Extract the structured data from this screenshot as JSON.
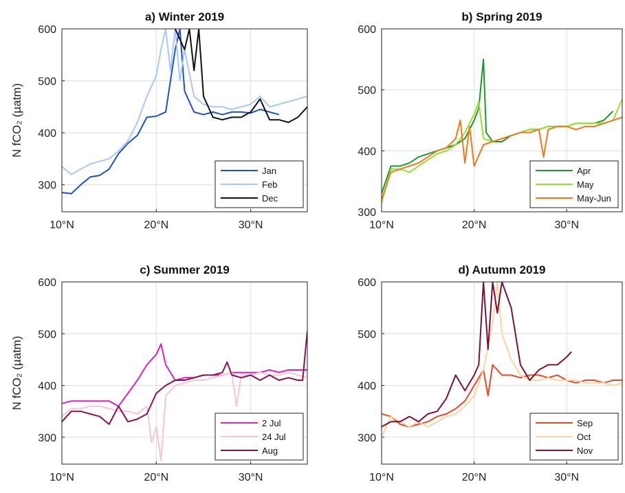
{
  "chart_data": [
    {
      "type": "line",
      "title": "a) Winter 2019",
      "ylabel": "N fCO₂ (µatm)",
      "xlim": [
        10,
        36
      ],
      "ylim": [
        248,
        600
      ],
      "xticks": [
        {
          "value": 10,
          "label": "10°N"
        },
        {
          "value": 20,
          "label": "20°N"
        },
        {
          "value": 30,
          "label": "30°N"
        }
      ],
      "yticks": [
        300,
        400,
        500,
        600
      ],
      "grid": true,
      "legend": "lower right",
      "series": [
        {
          "name": "Jan",
          "color": "#1f50c8",
          "x": [
            10,
            11,
            12,
            13,
            14,
            15,
            16,
            17,
            18,
            19,
            20,
            21,
            22,
            22.5,
            23,
            24,
            25,
            26,
            27,
            28,
            29,
            30,
            31,
            32,
            33
          ],
          "values": [
            285,
            283,
            300,
            315,
            318,
            330,
            360,
            380,
            395,
            430,
            432,
            440,
            560,
            600,
            480,
            440,
            435,
            440,
            435,
            440,
            440,
            438,
            445,
            440,
            435
          ]
        },
        {
          "name": "Feb",
          "color": "#a8c8f5",
          "x": [
            10,
            11,
            12,
            13,
            14,
            15,
            16,
            17,
            18,
            19,
            20,
            20.5,
            21,
            21.5,
            22,
            22.5,
            23,
            24,
            25,
            26,
            27,
            28,
            29,
            30,
            31,
            32,
            33,
            34,
            35,
            36
          ],
          "values": [
            335,
            320,
            330,
            340,
            345,
            350,
            365,
            385,
            420,
            470,
            510,
            560,
            600,
            520,
            600,
            500,
            560,
            470,
            455,
            450,
            450,
            445,
            450,
            455,
            470,
            450,
            455,
            460,
            465,
            470
          ]
        },
        {
          "name": "Dec",
          "color": "#111111",
          "x": [
            22,
            23,
            23.5,
            24,
            24.5,
            25,
            26,
            27,
            28,
            29,
            30,
            31,
            32,
            33,
            34,
            35,
            36
          ],
          "values": [
            600,
            560,
            600,
            520,
            600,
            470,
            430,
            425,
            430,
            430,
            440,
            465,
            425,
            425,
            420,
            430,
            450
          ]
        }
      ]
    },
    {
      "type": "line",
      "title": "b) Spring 2019",
      "xlim": [
        10,
        36
      ],
      "ylim": [
        300,
        600
      ],
      "xticks": [
        {
          "value": 10,
          "label": "10°N"
        },
        {
          "value": 20,
          "label": "20°N"
        },
        {
          "value": 30,
          "label": "30°N"
        }
      ],
      "yticks": [
        300,
        400,
        500,
        600
      ],
      "grid": true,
      "legend": "lower right",
      "series": [
        {
          "name": "Apr",
          "color": "#1a9a2a",
          "x": [
            10,
            11,
            12,
            13,
            14,
            15,
            16,
            17,
            18,
            19,
            20,
            20.5,
            21,
            21.3,
            22,
            23,
            24,
            25,
            26,
            27,
            28,
            29,
            30,
            31,
            32,
            33,
            34,
            35
          ],
          "values": [
            330,
            375,
            375,
            380,
            390,
            395,
            400,
            405,
            410,
            420,
            450,
            470,
            550,
            430,
            415,
            415,
            425,
            430,
            435,
            435,
            440,
            440,
            440,
            445,
            445,
            445,
            450,
            465
          ]
        },
        {
          "name": "May",
          "color": "#99dd33",
          "x": [
            10,
            11,
            12,
            13,
            14,
            15,
            16,
            17,
            18,
            19,
            20,
            20.5,
            21,
            22,
            23,
            24,
            25,
            26,
            27,
            28,
            29,
            30,
            31,
            32,
            33,
            34,
            35,
            36
          ],
          "values": [
            315,
            370,
            370,
            365,
            375,
            385,
            395,
            400,
            410,
            430,
            460,
            480,
            420,
            415,
            420,
            425,
            430,
            435,
            435,
            440,
            440,
            440,
            445,
            445,
            445,
            445,
            450,
            485
          ]
        },
        {
          "name": "May-Jun",
          "color": "#f07818",
          "x": [
            10,
            11,
            12,
            13,
            14,
            15,
            16,
            17,
            18,
            18.5,
            19,
            19.5,
            20,
            21,
            22,
            23,
            24,
            25,
            26,
            27,
            27.5,
            28,
            29,
            30,
            31,
            32,
            33,
            34,
            35,
            36
          ],
          "values": [
            320,
            365,
            370,
            375,
            380,
            390,
            400,
            405,
            420,
            450,
            380,
            440,
            375,
            410,
            415,
            420,
            425,
            430,
            430,
            435,
            390,
            435,
            440,
            440,
            435,
            440,
            440,
            445,
            450,
            455
          ]
        }
      ]
    },
    {
      "type": "line",
      "title": "c) Summer 2019",
      "ylabel": "N fCO₂ (µatm)",
      "xlim": [
        10,
        36
      ],
      "ylim": [
        248,
        600
      ],
      "xticks": [
        {
          "value": 10,
          "label": "10°N"
        },
        {
          "value": 20,
          "label": "20°N"
        },
        {
          "value": 30,
          "label": "30°N"
        }
      ],
      "yticks": [
        300,
        400,
        500,
        600
      ],
      "grid": true,
      "legend": "lower right",
      "series": [
        {
          "name": "2 Jul",
          "color": "#dd22bb",
          "x": [
            10,
            11,
            12,
            13,
            14,
            15,
            16,
            17,
            18,
            19,
            20,
            20.5,
            21,
            22,
            23,
            24,
            25,
            26,
            27,
            28,
            29,
            30,
            31,
            32,
            33,
            34,
            35,
            36
          ],
          "values": [
            365,
            370,
            370,
            370,
            370,
            370,
            360,
            385,
            410,
            440,
            460,
            480,
            440,
            410,
            415,
            415,
            420,
            420,
            420,
            425,
            425,
            425,
            425,
            430,
            425,
            430,
            430,
            430
          ]
        },
        {
          "name": "24 Jul",
          "color": "#f7c6d6",
          "x": [
            10,
            11,
            12,
            13,
            14,
            15,
            16,
            17,
            18,
            19,
            19.5,
            20,
            20.5,
            21,
            22,
            23,
            24,
            25,
            26,
            27,
            28,
            28.5,
            29,
            30,
            31,
            32,
            33,
            34,
            35,
            36
          ],
          "values": [
            340,
            355,
            355,
            360,
            360,
            355,
            350,
            350,
            345,
            360,
            290,
            320,
            255,
            380,
            400,
            405,
            410,
            410,
            415,
            420,
            425,
            360,
            420,
            420,
            425,
            420,
            420,
            425,
            420,
            415
          ]
        },
        {
          "name": "Aug",
          "color": "#8a1050",
          "x": [
            10,
            11,
            12,
            13,
            14,
            15,
            16,
            17,
            18,
            19,
            20,
            21,
            22,
            23,
            24,
            25,
            26,
            27,
            27.5,
            28,
            29,
            30,
            31,
            32,
            33,
            34,
            35,
            35.5,
            36
          ],
          "values": [
            330,
            350,
            350,
            345,
            340,
            325,
            360,
            330,
            335,
            345,
            385,
            400,
            410,
            410,
            415,
            420,
            420,
            425,
            445,
            420,
            415,
            420,
            410,
            420,
            410,
            415,
            410,
            410,
            505
          ]
        }
      ]
    },
    {
      "type": "line",
      "title": "d) Autumn 2019",
      "xlim": [
        10,
        36
      ],
      "ylim": [
        248,
        600
      ],
      "xticks": [
        {
          "value": 10,
          "label": "10°N"
        },
        {
          "value": 20,
          "label": "20°N"
        },
        {
          "value": 30,
          "label": "30°N"
        }
      ],
      "yticks": [
        300,
        400,
        500,
        600
      ],
      "grid": true,
      "legend": "lower right",
      "series": [
        {
          "name": "Sep",
          "color": "#e8482a",
          "x": [
            10,
            11,
            12,
            13,
            14,
            15,
            16,
            17,
            18,
            19,
            20,
            21,
            21.5,
            22,
            23,
            24,
            25,
            26,
            27,
            28,
            29,
            30,
            31,
            32,
            33,
            34,
            35,
            36
          ],
          "values": [
            345,
            340,
            325,
            320,
            325,
            330,
            340,
            345,
            355,
            370,
            400,
            430,
            380,
            440,
            420,
            420,
            415,
            420,
            420,
            415,
            420,
            410,
            405,
            410,
            410,
            405,
            410,
            410
          ]
        },
        {
          "name": "Oct",
          "color": "#fcd4a4",
          "x": [
            10,
            11,
            12,
            13,
            14,
            15,
            16,
            17,
            18,
            19,
            20,
            21,
            22,
            22.5,
            23,
            24,
            25,
            26,
            27,
            28,
            29,
            30,
            31,
            32,
            33,
            34,
            35,
            36
          ],
          "values": [
            300,
            340,
            330,
            320,
            330,
            320,
            330,
            340,
            345,
            360,
            380,
            430,
            520,
            600,
            500,
            450,
            420,
            410,
            410,
            415,
            410,
            410,
            410,
            405,
            405,
            405,
            400,
            405
          ]
        },
        {
          "name": "Nov",
          "color": "#7a1035",
          "x": [
            10,
            11,
            12,
            13,
            14,
            15,
            16,
            17,
            18,
            19,
            20,
            20.5,
            21,
            21.5,
            22,
            22.5,
            23,
            24,
            25,
            26,
            27,
            28,
            29,
            30,
            30.5
          ],
          "values": [
            320,
            330,
            330,
            340,
            330,
            345,
            350,
            375,
            420,
            390,
            420,
            440,
            600,
            470,
            600,
            540,
            600,
            550,
            440,
            410,
            430,
            440,
            440,
            455,
            465
          ]
        }
      ]
    }
  ]
}
